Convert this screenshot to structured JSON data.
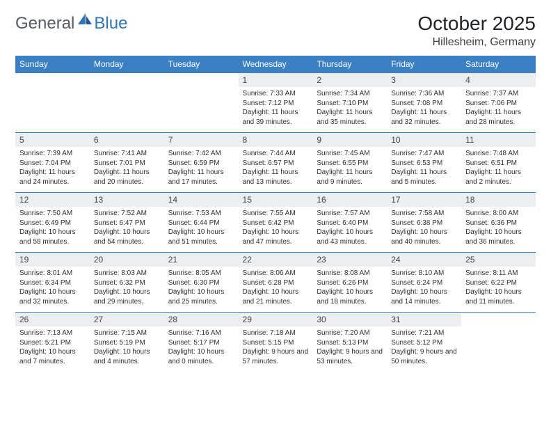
{
  "logo": {
    "general": "General",
    "blue": "Blue"
  },
  "title": {
    "month": "October 2025",
    "location": "Hillesheim, Germany"
  },
  "colors": {
    "header_bg": "#3a80c2",
    "header_text": "#ffffff",
    "daynum_bg": "#eceeef",
    "border": "#3a80c2",
    "text": "#2c2f32",
    "logo_gray": "#555b60",
    "logo_blue": "#2f76b8"
  },
  "weekdays": [
    "Sunday",
    "Monday",
    "Tuesday",
    "Wednesday",
    "Thursday",
    "Friday",
    "Saturday"
  ],
  "weeks": [
    [
      null,
      null,
      null,
      {
        "n": "1",
        "sr": "7:33 AM",
        "ss": "7:12 PM",
        "dl": "11 hours and 39 minutes."
      },
      {
        "n": "2",
        "sr": "7:34 AM",
        "ss": "7:10 PM",
        "dl": "11 hours and 35 minutes."
      },
      {
        "n": "3",
        "sr": "7:36 AM",
        "ss": "7:08 PM",
        "dl": "11 hours and 32 minutes."
      },
      {
        "n": "4",
        "sr": "7:37 AM",
        "ss": "7:06 PM",
        "dl": "11 hours and 28 minutes."
      }
    ],
    [
      {
        "n": "5",
        "sr": "7:39 AM",
        "ss": "7:04 PM",
        "dl": "11 hours and 24 minutes."
      },
      {
        "n": "6",
        "sr": "7:41 AM",
        "ss": "7:01 PM",
        "dl": "11 hours and 20 minutes."
      },
      {
        "n": "7",
        "sr": "7:42 AM",
        "ss": "6:59 PM",
        "dl": "11 hours and 17 minutes."
      },
      {
        "n": "8",
        "sr": "7:44 AM",
        "ss": "6:57 PM",
        "dl": "11 hours and 13 minutes."
      },
      {
        "n": "9",
        "sr": "7:45 AM",
        "ss": "6:55 PM",
        "dl": "11 hours and 9 minutes."
      },
      {
        "n": "10",
        "sr": "7:47 AM",
        "ss": "6:53 PM",
        "dl": "11 hours and 5 minutes."
      },
      {
        "n": "11",
        "sr": "7:48 AM",
        "ss": "6:51 PM",
        "dl": "11 hours and 2 minutes."
      }
    ],
    [
      {
        "n": "12",
        "sr": "7:50 AM",
        "ss": "6:49 PM",
        "dl": "10 hours and 58 minutes."
      },
      {
        "n": "13",
        "sr": "7:52 AM",
        "ss": "6:47 PM",
        "dl": "10 hours and 54 minutes."
      },
      {
        "n": "14",
        "sr": "7:53 AM",
        "ss": "6:44 PM",
        "dl": "10 hours and 51 minutes."
      },
      {
        "n": "15",
        "sr": "7:55 AM",
        "ss": "6:42 PM",
        "dl": "10 hours and 47 minutes."
      },
      {
        "n": "16",
        "sr": "7:57 AM",
        "ss": "6:40 PM",
        "dl": "10 hours and 43 minutes."
      },
      {
        "n": "17",
        "sr": "7:58 AM",
        "ss": "6:38 PM",
        "dl": "10 hours and 40 minutes."
      },
      {
        "n": "18",
        "sr": "8:00 AM",
        "ss": "6:36 PM",
        "dl": "10 hours and 36 minutes."
      }
    ],
    [
      {
        "n": "19",
        "sr": "8:01 AM",
        "ss": "6:34 PM",
        "dl": "10 hours and 32 minutes."
      },
      {
        "n": "20",
        "sr": "8:03 AM",
        "ss": "6:32 PM",
        "dl": "10 hours and 29 minutes."
      },
      {
        "n": "21",
        "sr": "8:05 AM",
        "ss": "6:30 PM",
        "dl": "10 hours and 25 minutes."
      },
      {
        "n": "22",
        "sr": "8:06 AM",
        "ss": "6:28 PM",
        "dl": "10 hours and 21 minutes."
      },
      {
        "n": "23",
        "sr": "8:08 AM",
        "ss": "6:26 PM",
        "dl": "10 hours and 18 minutes."
      },
      {
        "n": "24",
        "sr": "8:10 AM",
        "ss": "6:24 PM",
        "dl": "10 hours and 14 minutes."
      },
      {
        "n": "25",
        "sr": "8:11 AM",
        "ss": "6:22 PM",
        "dl": "10 hours and 11 minutes."
      }
    ],
    [
      {
        "n": "26",
        "sr": "7:13 AM",
        "ss": "5:21 PM",
        "dl": "10 hours and 7 minutes."
      },
      {
        "n": "27",
        "sr": "7:15 AM",
        "ss": "5:19 PM",
        "dl": "10 hours and 4 minutes."
      },
      {
        "n": "28",
        "sr": "7:16 AM",
        "ss": "5:17 PM",
        "dl": "10 hours and 0 minutes."
      },
      {
        "n": "29",
        "sr": "7:18 AM",
        "ss": "5:15 PM",
        "dl": "9 hours and 57 minutes."
      },
      {
        "n": "30",
        "sr": "7:20 AM",
        "ss": "5:13 PM",
        "dl": "9 hours and 53 minutes."
      },
      {
        "n": "31",
        "sr": "7:21 AM",
        "ss": "5:12 PM",
        "dl": "9 hours and 50 minutes."
      },
      null
    ]
  ],
  "labels": {
    "sunrise": "Sunrise:",
    "sunset": "Sunset:",
    "daylight": "Daylight:"
  }
}
